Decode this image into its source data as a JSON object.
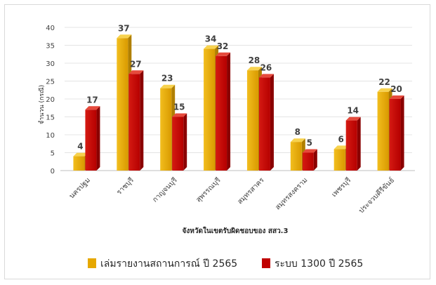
{
  "chart_data": {
    "type": "bar",
    "title": "",
    "xlabel": "จังหวัดในเขตรับผิดชอบของ สสว.3",
    "ylabel": "จำนวน (กรณี)",
    "ylim": [
      0,
      40
    ],
    "yticks": [
      0,
      5,
      10,
      15,
      20,
      25,
      30,
      35,
      40
    ],
    "grid": true,
    "legend_position": "bottom",
    "categories": [
      "นครปฐม",
      "ราชบุรี",
      "กาญจนบุรี",
      "สุพรรณบุรี",
      "สมุทรสาคร",
      "สมุทรสงคราม",
      "เพชรบุรี",
      "ประจวบคีรีขันธ์"
    ],
    "series": [
      {
        "name": "เล่มรายงานสถานการณ์ ปี 2565",
        "color": "#E6A800",
        "values": [
          4,
          37,
          23,
          34,
          28,
          8,
          6,
          22
        ]
      },
      {
        "name": "ระบบ 1300 ปี 2565",
        "color": "#C00000",
        "values": [
          17,
          27,
          15,
          32,
          26,
          5,
          14,
          20
        ]
      }
    ]
  }
}
